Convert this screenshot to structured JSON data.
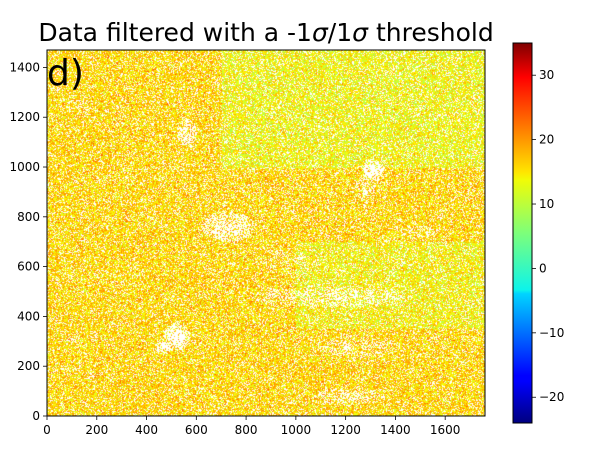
{
  "chart_data": {
    "type": "heatmap",
    "title_parts": [
      "Data filtered with a -1",
      "σ",
      "/1",
      "σ",
      " threshold"
    ],
    "panel_label": "d)",
    "xlabel": "",
    "ylabel": "",
    "xlim": [
      0,
      1760
    ],
    "ylim": [
      0,
      1470
    ],
    "x_ticks": [
      "0",
      "200",
      "400",
      "600",
      "800",
      "1000",
      "1200",
      "1400",
      "1600"
    ],
    "x_tick_values": [
      0,
      200,
      400,
      600,
      800,
      1000,
      1200,
      1400,
      1600
    ],
    "y_ticks": [
      "0",
      "200",
      "400",
      "600",
      "800",
      "1000",
      "1200",
      "1400"
    ],
    "y_tick_values": [
      0,
      200,
      400,
      600,
      800,
      1000,
      1200,
      1400
    ],
    "colorbar": {
      "colormap": "jet",
      "range": [
        -24,
        35
      ],
      "ticks": [
        "−20",
        "−10",
        "0",
        "10",
        "20",
        "30"
      ],
      "tick_values": [
        -20,
        -10,
        0,
        10,
        20,
        30
      ]
    },
    "dominant_value_range": [
      10,
      20
    ],
    "grid": false,
    "masked_regions_color": "#ffffff"
  }
}
